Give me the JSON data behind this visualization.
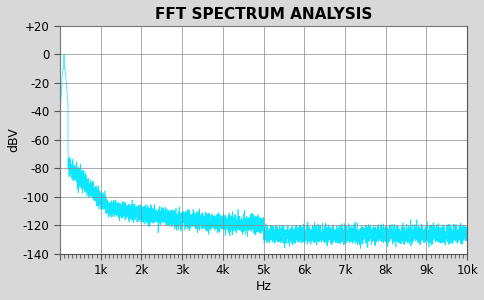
{
  "title": "FFT SPECTRUM ANALYSIS",
  "xlabel": "Hz",
  "ylabel": "dBV",
  "xlim": [
    0,
    10000
  ],
  "ylim": [
    -140,
    20
  ],
  "yticks": [
    20,
    0,
    -20,
    -40,
    -60,
    -80,
    -100,
    -120,
    -140
  ],
  "xticks": [
    0,
    1000,
    2000,
    3000,
    4000,
    5000,
    6000,
    7000,
    8000,
    9000,
    10000
  ],
  "xticklabels": [
    "",
    "1k",
    "2k",
    "3k",
    "4k",
    "5k",
    "6k",
    "7k",
    "8k",
    "9k",
    "10k"
  ],
  "line_color": "#00e5ff",
  "bg_color": "#d8d8d8",
  "plot_bg_color": "#ffffff",
  "grid_color": "#888888",
  "title_fontsize": 11,
  "axis_fontsize": 9,
  "tick_fontsize": 8.5
}
